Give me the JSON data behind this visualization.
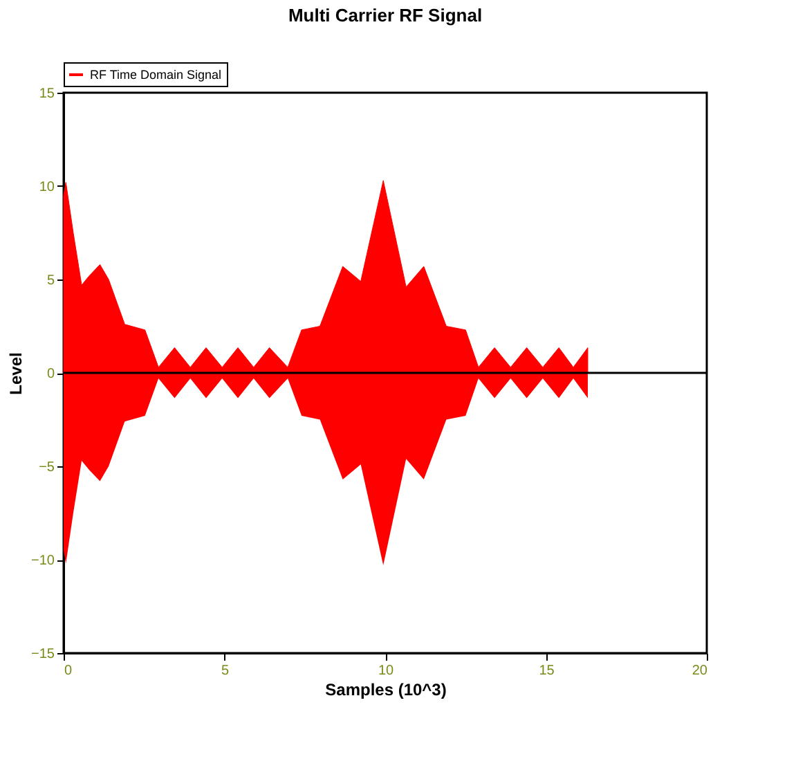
{
  "chart_data": {
    "type": "area",
    "title": "Multi Carrier RF Signal",
    "xlabel": "Samples (10^3)",
    "ylabel": "Level",
    "xlim": [
      0,
      20
    ],
    "xticks": [
      0,
      5,
      10,
      15,
      20
    ],
    "ylim": [
      -15,
      15
    ],
    "yticks": [
      -15,
      -10,
      -5,
      0,
      5,
      10,
      15
    ],
    "grid": false,
    "legend": "top left",
    "ref_lines": [
      {
        "axis": "y",
        "value": 0,
        "color": "#000000"
      }
    ],
    "series": [
      {
        "name": "RF Time Domain Signal",
        "color": "#ff0000",
        "x": [
          0,
          0.07,
          0.3,
          0.56,
          0.8,
          1.13,
          1.4,
          1.9,
          2.53,
          2.95,
          3.45,
          3.94,
          4.43,
          4.93,
          5.42,
          5.91,
          6.4,
          6.97,
          7.4,
          7.97,
          8.68,
          9.24,
          9.94,
          10.65,
          11.2,
          11.9,
          12.5,
          12.9,
          13.4,
          13.9,
          14.4,
          14.9,
          15.4,
          15.85,
          16.3
        ],
        "values": [
          9.5,
          10.2,
          7.5,
          4.7,
          5.2,
          5.8,
          5.0,
          2.6,
          2.3,
          0.3,
          1.35,
          0.3,
          1.35,
          0.3,
          1.35,
          0.3,
          1.35,
          0.3,
          2.3,
          2.5,
          5.7,
          4.9,
          10.3,
          4.6,
          5.7,
          2.5,
          2.3,
          0.3,
          1.35,
          0.3,
          1.35,
          0.3,
          1.35,
          0.3,
          1.35
        ]
      },
      {
        "color": "#ff0000",
        "x": [
          0,
          0.07,
          0.3,
          0.56,
          0.8,
          1.13,
          1.4,
          1.9,
          2.53,
          2.95,
          3.45,
          3.94,
          4.43,
          4.93,
          5.42,
          5.91,
          6.4,
          6.97,
          7.4,
          7.97,
          8.68,
          9.24,
          9.94,
          10.65,
          11.2,
          11.9,
          12.5,
          12.9,
          13.4,
          13.9,
          14.4,
          14.9,
          15.4,
          15.85,
          16.3
        ],
        "values": [
          -9.5,
          -10.2,
          -7.5,
          -4.7,
          -5.2,
          -5.8,
          -5.0,
          -2.6,
          -2.3,
          -0.3,
          -1.35,
          -0.3,
          -1.35,
          -0.3,
          -1.35,
          -0.3,
          -1.35,
          -0.3,
          -2.3,
          -2.5,
          -5.7,
          -4.9,
          -10.3,
          -4.6,
          -5.7,
          -2.5,
          -2.3,
          -0.3,
          -1.35,
          -0.3,
          -1.35,
          -0.3,
          -1.35,
          -0.3,
          -1.35
        ]
      }
    ]
  }
}
